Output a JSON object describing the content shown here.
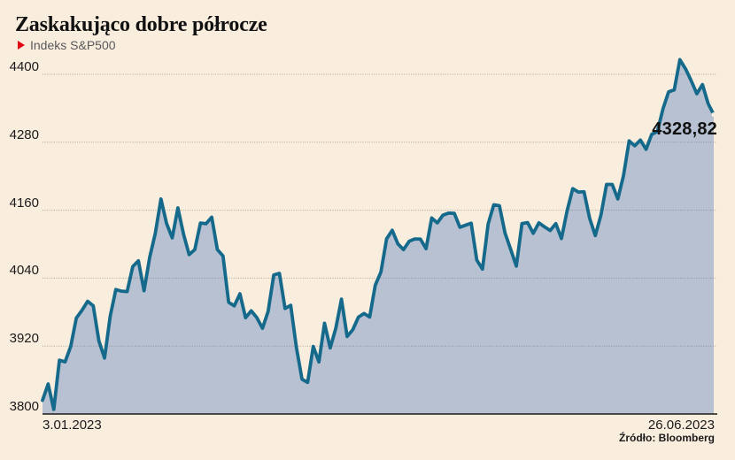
{
  "header": {
    "title": "Zaskakująco dobre półrocze",
    "legend_label": "Indeks S&P500"
  },
  "footer": {
    "source": "Źródło: Bloomberg"
  },
  "theme": {
    "background": "#f9edde",
    "line_color": "#15698b",
    "fill_color": "#b8c1d2",
    "grid_color": "#6f6c66",
    "axis_color": "#1b1b19",
    "text_color": "#1a1a1a",
    "accent_red": "#e30613",
    "end_dot_color": "#f9edde"
  },
  "chart_data": {
    "type": "area",
    "title": "Zaskakująco dobre półrocze",
    "series_name": "Indeks S&P500",
    "x_start_label": "3.01.2023",
    "x_end_label": "26.06.2023",
    "last_point_label": "4328,82",
    "ylim": [
      3800,
      4400
    ],
    "y_ticks": [
      4400,
      4280,
      4160,
      4040,
      3920,
      3800
    ],
    "grid": true,
    "legend_position": "top-left",
    "values": [
      3824.14,
      3852.97,
      3808.1,
      3895.08,
      3892.09,
      3919.25,
      3969.61,
      3983.17,
      3999.09,
      3990.97,
      3928.86,
      3898.85,
      3972.61,
      4019.81,
      4016.95,
      4016.22,
      4060.43,
      4070.56,
      4017.77,
      4076.6,
      4119.21,
      4179.76,
      4136.48,
      4111.08,
      4164.0,
      4117.86,
      4081.5,
      4090.46,
      4137.29,
      4136.13,
      4147.6,
      4090.41,
      4079.09,
      3997.34,
      3991.05,
      4012.32,
      3970.04,
      3982.24,
      3970.15,
      3951.39,
      3981.35,
      4045.64,
      4048.42,
      3986.37,
      3992.01,
      3918.32,
      3861.59,
      3855.76,
      3919.29,
      3891.93,
      3960.28,
      3916.64,
      3951.57,
      4002.87,
      3936.97,
      3948.72,
      3970.99,
      3977.53,
      3971.27,
      4027.81,
      4050.83,
      4109.31,
      4124.51,
      4100.6,
      4090.38,
      4105.02,
      4109.11,
      4108.94,
      4091.95,
      4146.22,
      4137.64,
      4151.32,
      4154.87,
      4154.52,
      4129.79,
      4133.52,
      4137.04,
      4071.63,
      4055.99,
      4135.35,
      4169.48,
      4167.87,
      4119.58,
      4090.75,
      4061.22,
      4136.25,
      4138.12,
      4119.17,
      4137.64,
      4130.62,
      4124.08,
      4136.28,
      4109.9,
      4158.77,
      4198.05,
      4191.98,
      4192.63,
      4145.58,
      4115.24,
      4151.28,
      4205.45,
      4205.52,
      4179.83,
      4221.02,
      4282.37,
      4273.79,
      4283.85,
      4267.52,
      4293.93,
      4298.86,
      4338.93,
      4369.01,
      4372.59,
      4425.84,
      4409.59,
      4388.71,
      4365.69,
      4381.89,
      4348.33,
      4328.82
    ]
  }
}
